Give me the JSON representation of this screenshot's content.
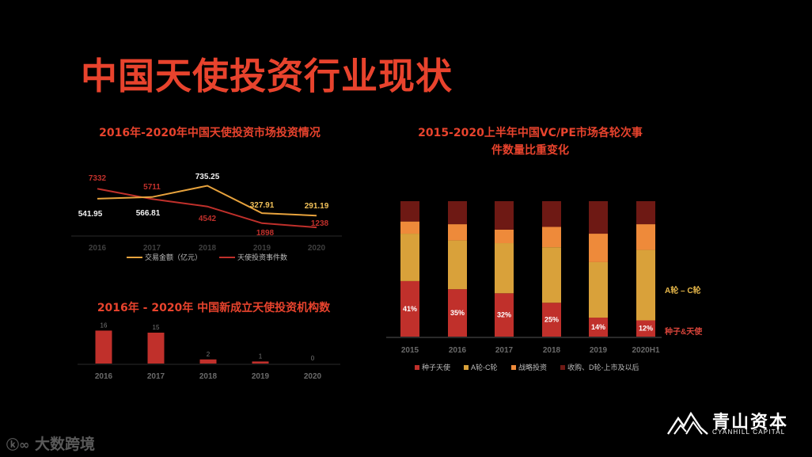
{
  "page": {
    "title": "中国天使投资行业现状",
    "watermark": "大数跨境",
    "logo_cn": "青山资本",
    "logo_en": "CYANHILL CAPITAL",
    "colors": {
      "background": "#000000",
      "title": "#e8432d",
      "gold": "#e8a33d",
      "red": "#c0302b"
    }
  },
  "chart_data": [
    {
      "type": "line",
      "title": "2016年-2020年中国天使投资市场投资情况",
      "categories": [
        "2016",
        "2017",
        "2018",
        "2019",
        "2020"
      ],
      "series": [
        {
          "name": "交易金额（亿元）",
          "color": "#e8a33d",
          "values": [
            541.95,
            566.81,
            735.25,
            327.91,
            291.19
          ]
        },
        {
          "name": "天使投资事件数",
          "color": "#c0302b",
          "values": [
            7332,
            5711,
            4542,
            1898,
            1238
          ]
        }
      ],
      "labels": {
        "amount": [
          "541.95",
          "566.81",
          "735.25",
          "327.91",
          "291.19"
        ],
        "events": [
          "7332",
          "5711",
          "4542",
          "1898",
          "1238"
        ]
      }
    },
    {
      "type": "bar",
      "title": "2016年 - 2020年 中国新成立天使投资机构数",
      "categories": [
        "2016",
        "2017",
        "2018",
        "2019",
        "2020"
      ],
      "values": [
        16,
        15,
        2,
        1,
        0
      ],
      "color": "#c0302b"
    },
    {
      "type": "bar",
      "stacked": true,
      "title_lines": [
        "2015-2020上半年中国VC/PE市场各轮次事",
        "件数量比重变化"
      ],
      "categories": [
        "2015",
        "2016",
        "2017",
        "2018",
        "2019",
        "2020H1"
      ],
      "ylim": [
        0,
        100
      ],
      "series": [
        {
          "name": "种子天使",
          "color": "#c0302b",
          "values": [
            41,
            35,
            32,
            25,
            14,
            12
          ],
          "labels": [
            "41%",
            "35%",
            "32%",
            "25%",
            "14%",
            "12%"
          ]
        },
        {
          "name": "A轮-C轮",
          "color": "#d9a13a",
          "values": [
            35,
            36,
            37,
            41,
            41,
            52
          ]
        },
        {
          "name": "战略投资",
          "color": "#ee8a3a",
          "values": [
            9,
            12,
            10,
            15,
            21,
            19
          ]
        },
        {
          "name": "收购、D轮-上市及以后",
          "color": "#6e1914",
          "values": [
            15,
            17,
            21,
            19,
            24,
            17
          ]
        }
      ],
      "annotations": {
        "a_c": "A轮 – C轮",
        "seed": "种子&天使"
      }
    }
  ]
}
